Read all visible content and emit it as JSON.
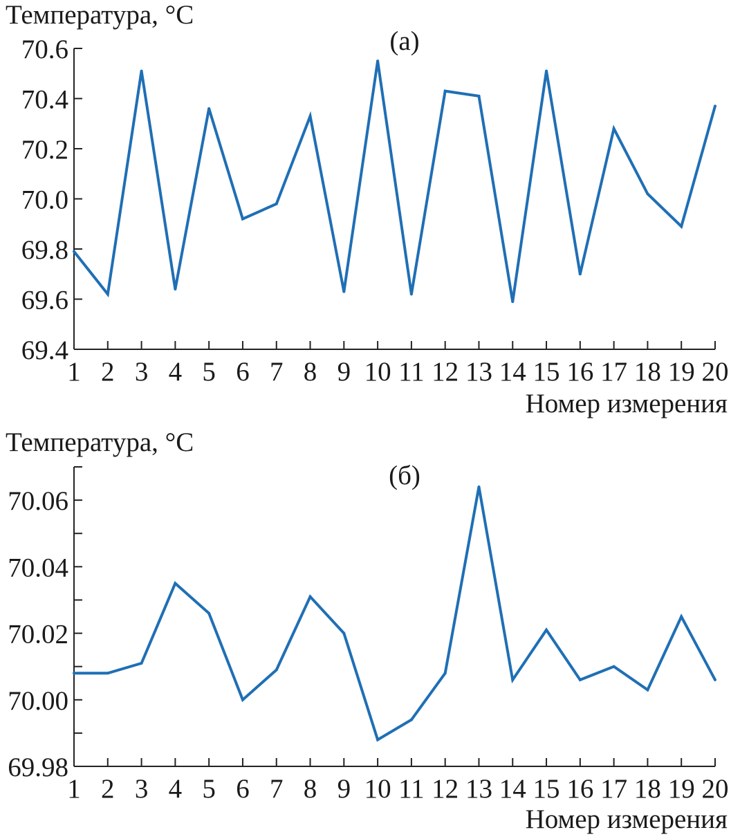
{
  "chart_data": [
    {
      "type": "line",
      "title": "(а)",
      "ylabel": "Температура, °C",
      "xlabel": "Номер измерения",
      "x": [
        1,
        2,
        3,
        4,
        5,
        6,
        7,
        8,
        9,
        10,
        11,
        12,
        13,
        14,
        15,
        16,
        17,
        18,
        19,
        20
      ],
      "ylim": [
        69.4,
        70.6
      ],
      "yticks": [
        "69.4",
        "69.6",
        "69.8",
        "70.0",
        "70.2",
        "70.4",
        "70.6"
      ],
      "series": [
        {
          "color": "#1f6fb5",
          "values": [
            69.79,
            69.62,
            70.51,
            69.64,
            70.36,
            69.92,
            69.98,
            70.33,
            69.63,
            70.55,
            69.62,
            70.43,
            70.41,
            69.59,
            70.51,
            69.7,
            70.28,
            70.02,
            69.89,
            70.37
          ]
        }
      ],
      "grid": false
    },
    {
      "type": "line",
      "title": "(б)",
      "ylabel": "Температура, °C",
      "xlabel": "Номер измерения",
      "x": [
        1,
        2,
        3,
        4,
        5,
        6,
        7,
        8,
        9,
        10,
        11,
        12,
        13,
        14,
        15,
        16,
        17,
        18,
        19,
        20
      ],
      "ylim": [
        69.98,
        70.07
      ],
      "yticks": [
        "69.98",
        "70.00",
        "70.02",
        "70.04",
        "70.06"
      ],
      "series": [
        {
          "color": "#1f6fb5",
          "values": [
            70.008,
            70.008,
            70.011,
            70.035,
            70.026,
            70.0,
            70.009,
            70.031,
            70.02,
            69.988,
            69.994,
            70.008,
            70.064,
            70.006,
            70.021,
            70.006,
            70.01,
            70.003,
            70.025,
            70.006
          ]
        }
      ],
      "grid": false
    }
  ]
}
